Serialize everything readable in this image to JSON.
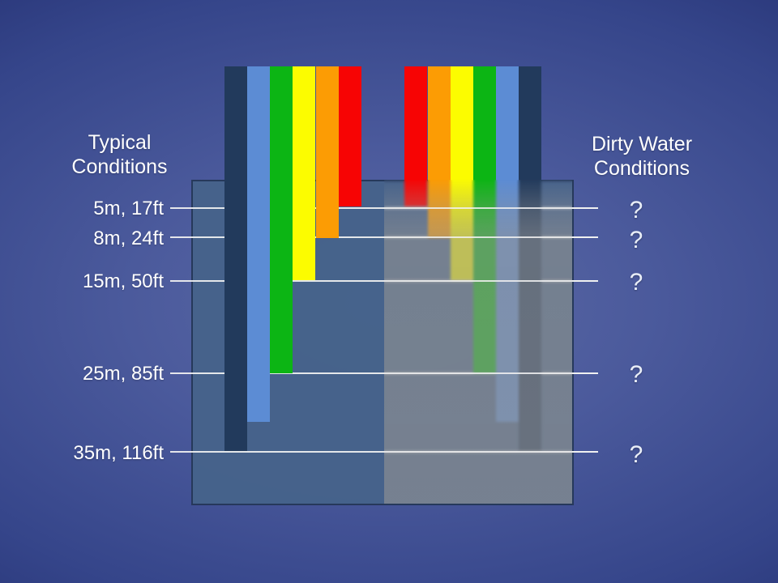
{
  "left_panel": {
    "title_lines": [
      "Typical",
      "Conditions"
    ],
    "depth_labels": [
      "5m, 17ft",
      "8m, 24ft",
      "15m, 50ft",
      "25m, 85ft",
      "35m, 116ft"
    ]
  },
  "right_panel": {
    "title_lines": [
      "Dirty Water",
      "Conditions"
    ],
    "unknown_depth_marks": [
      "?",
      "?",
      "?",
      "?",
      "?"
    ]
  },
  "colors": {
    "background_center": "#5c6aa6",
    "background_edge": "#17235a",
    "water_box": "#46638b",
    "water_box_border": "#203050",
    "dirty_overlay_gray": "#949494",
    "depth_line": "#f2f2f2",
    "text": "#ffffff"
  },
  "chart_data": {
    "type": "bar",
    "title": "",
    "xlabel": "",
    "ylabel": "",
    "depth_ticks": [
      {
        "label": "5m, 17ft",
        "m": 5,
        "ft": 17
      },
      {
        "label": "8m, 24ft",
        "m": 8,
        "ft": 24
      },
      {
        "label": "15m, 50ft",
        "m": 15,
        "ft": 50
      },
      {
        "label": "25m, 85ft",
        "m": 25,
        "ft": 85
      },
      {
        "label": "35m, 116ft",
        "m": 35,
        "ft": 116
      }
    ],
    "groups": [
      {
        "name": "Typical Conditions",
        "bar_order_left_to_right": [
          "navy",
          "lightblue",
          "green",
          "yellow",
          "orange",
          "red"
        ],
        "bars": [
          {
            "key": "navy",
            "color_name": "dark blue",
            "hex": "#223a5c",
            "penetration_depth_m": 35
          },
          {
            "key": "lightblue",
            "color_name": "light blue",
            "hex": "#5c8cd4",
            "penetration_depth_m": 30
          },
          {
            "key": "green",
            "color_name": "green",
            "hex": "#0cb514",
            "penetration_depth_m": 25
          },
          {
            "key": "yellow",
            "color_name": "yellow",
            "hex": "#fcfc00",
            "penetration_depth_m": 15
          },
          {
            "key": "orange",
            "color_name": "orange",
            "hex": "#fc9c04",
            "penetration_depth_m": 8
          },
          {
            "key": "red",
            "color_name": "red",
            "hex": "#f70404",
            "penetration_depth_m": 5
          }
        ]
      },
      {
        "name": "Dirty Water Conditions",
        "bar_order_left_to_right": [
          "red",
          "orange",
          "yellow",
          "green",
          "lightblue",
          "navy"
        ],
        "penetration_depths_shown_as": [
          "?",
          "?",
          "?",
          "?",
          "?"
        ]
      }
    ],
    "legend": "none",
    "grid": "horizontal depth lines"
  }
}
